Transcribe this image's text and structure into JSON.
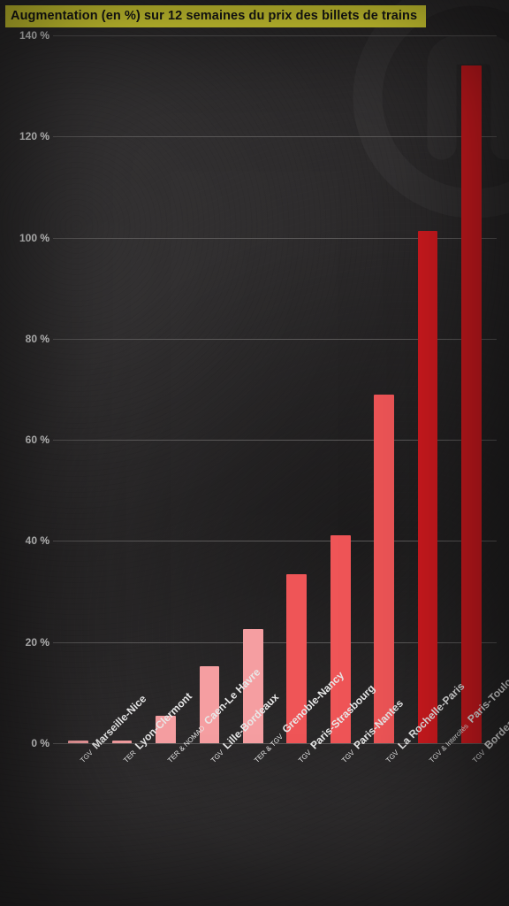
{
  "title": {
    "text": "Augmentation (en %) sur 12 semaines du prix des billets de trains",
    "background_color": "#f5f03a",
    "text_color": "#1a1a1a",
    "fontsize": 14.5,
    "fontweight": 700
  },
  "background": {
    "base_color": "#2e2c2d",
    "vignette": true,
    "watermark_color": "#4a4849",
    "watermark_opacity": 0.12
  },
  "chart": {
    "type": "bar",
    "y_axis": {
      "min": 0,
      "max": 140,
      "tick_step": 20,
      "tick_suffix": " %",
      "label_color": "#e8e8e8",
      "label_fontsize": 12,
      "grid_color": "#5a5858",
      "grid_width": 1
    },
    "x_axis": {
      "label_color": "#e8e8e8",
      "label_fontsize": 12,
      "prefix_fontsize": 8,
      "rotation_deg": -45
    },
    "bar_width_ratio": 0.46,
    "colors": {
      "light": "#f59ea1",
      "mid": "#ef5557",
      "dark": "#d11a1f"
    },
    "data": [
      {
        "prefix": "TGV",
        "route": "Marseille-Nice",
        "value": 0.6,
        "color_key": "light"
      },
      {
        "prefix": "TER",
        "route": "Lyon-Clermont",
        "value": 0.6,
        "color_key": "light"
      },
      {
        "prefix": "TER & NOMAD",
        "route": "Caen-Le Havre",
        "value": 5.5,
        "color_key": "light"
      },
      {
        "prefix": "TGV",
        "route": "Lille-Bordeaux",
        "value": 15.3,
        "color_key": "light"
      },
      {
        "prefix": "TER & TGV",
        "route": "Grenoble-Nancy",
        "value": 22.5,
        "color_key": "light"
      },
      {
        "prefix": "TGV",
        "route": "Paris-Strasbourg",
        "value": 33.5,
        "color_key": "mid"
      },
      {
        "prefix": "TGV",
        "route": "Paris-Nantes",
        "value": 41.2,
        "color_key": "mid"
      },
      {
        "prefix": "TGV",
        "route": "La Rochelle-Paris",
        "value": 69,
        "color_key": "mid"
      },
      {
        "prefix": "TGV & Intercités",
        "route": "Paris-Toulouse",
        "value": 101.3,
        "color_key": "dark"
      },
      {
        "prefix": "TGV",
        "route": "Bordeaux-Nantes",
        "value": 134,
        "color_key": "dark"
      }
    ]
  }
}
